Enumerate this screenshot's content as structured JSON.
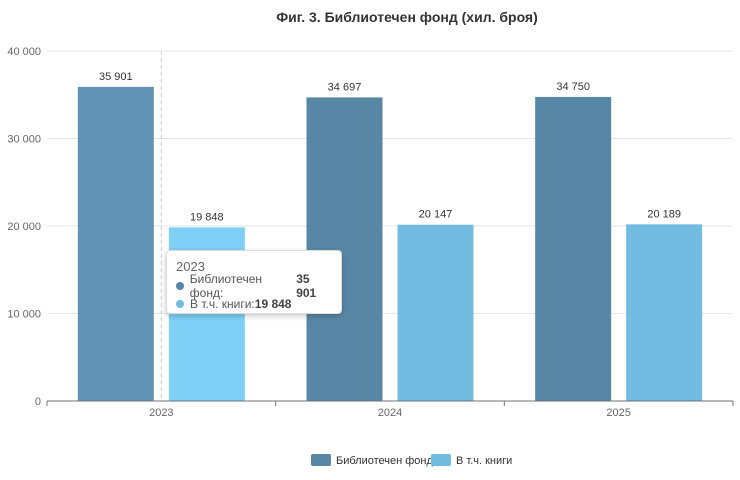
{
  "chart_data": {
    "type": "bar",
    "title": "Фиг. 3. Библиотечен фонд (хил. броя)",
    "categories": [
      "2023",
      "2024",
      "2025"
    ],
    "series": [
      {
        "name": "Библиотечен фонд",
        "values": [
          35901,
          34697,
          34750
        ],
        "labels": [
          "35 901",
          "34 697",
          "34 750"
        ],
        "color": "#5886a5"
      },
      {
        "name": "В т.ч. книги",
        "values": [
          19848,
          20147,
          20189
        ],
        "labels": [
          "19 848",
          "20 147",
          "20 189"
        ],
        "color": "#72bce1"
      }
    ],
    "ylim": [
      0,
      40000
    ],
    "yticks": [
      0,
      10000,
      20000,
      30000,
      40000
    ],
    "ytick_labels": [
      "0",
      "10 000",
      "20 000",
      "30 000",
      "40 000"
    ],
    "grid": true,
    "legend": "bottom-center",
    "highlight_colors": [
      "#6193b7",
      "#7fd0f7"
    ]
  },
  "tooltip": {
    "title": "2023",
    "rows": [
      {
        "label": "Библиотечен фонд: ",
        "value": "35 901"
      },
      {
        "label": "В т.ч. книги: ",
        "value": "19 848"
      }
    ]
  }
}
